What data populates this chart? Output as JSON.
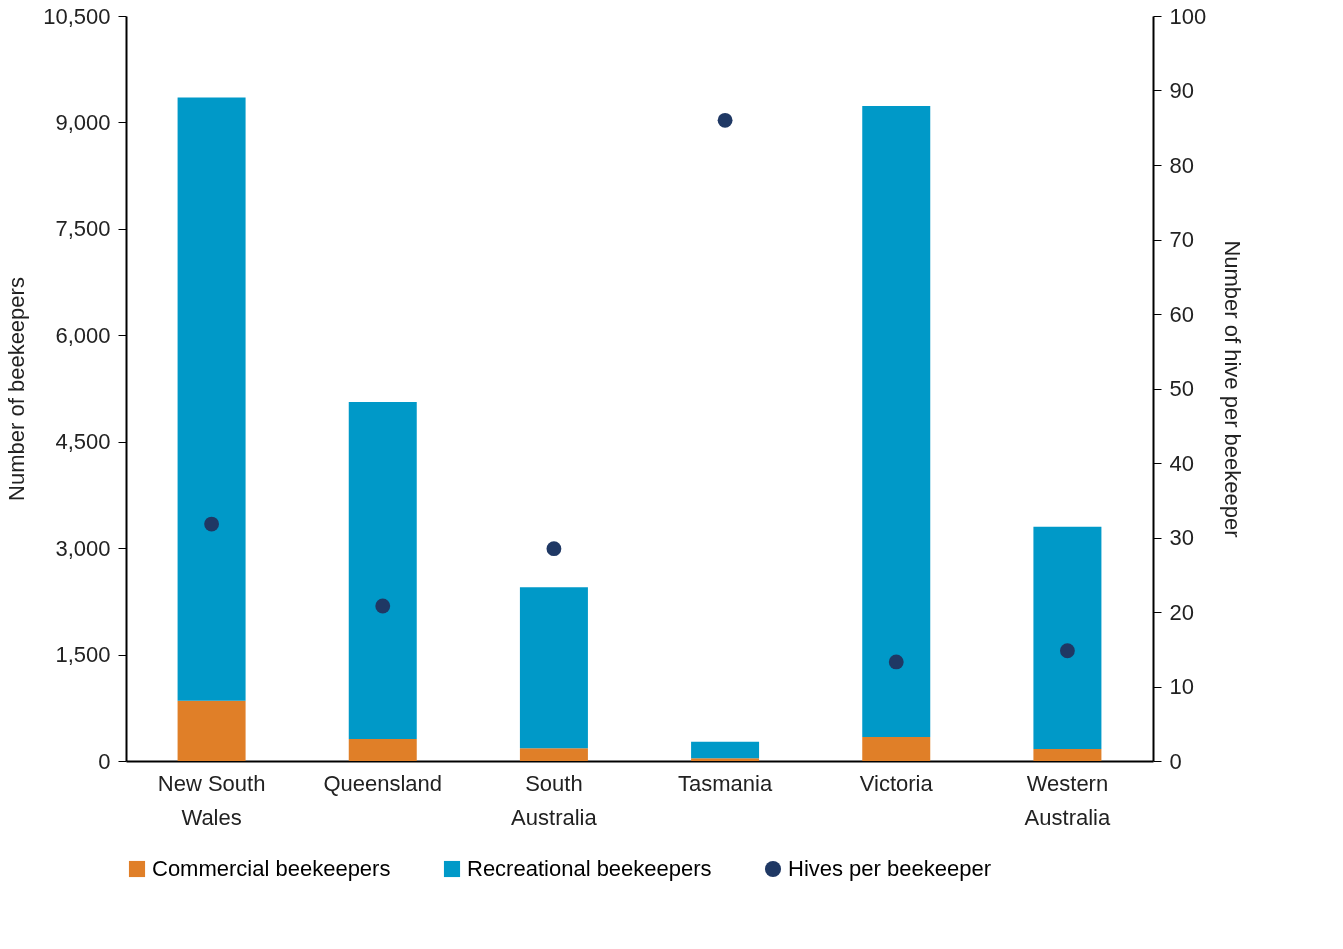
{
  "chart_data": {
    "type": "bar",
    "stacked": true,
    "ylabel": "Number of beekeepers",
    "y2label": "Number of hive per beekeeper",
    "categories": [
      "New South Wales",
      "Queensland",
      "South Australia",
      "Tasmania",
      "Victoria",
      "Western Australia"
    ],
    "series": [
      {
        "name": "Commercial beekeepers",
        "color": "#e07f28",
        "values": [
          850,
          310,
          180,
          40,
          340,
          170
        ]
      },
      {
        "name": "Recreational beekeepers",
        "color": "#0099c8",
        "values": [
          8500,
          4750,
          2270,
          230,
          8890,
          3130
        ]
      },
      {
        "name": "Hives per beekeeper",
        "color": "#1f3864",
        "type": "scatter",
        "axis": "y2",
        "marker": "circle",
        "values": [
          31.8,
          20.8,
          28.5,
          86.0,
          13.3,
          14.8
        ]
      }
    ],
    "ylim": [
      0,
      10500
    ],
    "yticks": [
      0,
      {
        "value": 1500,
        "label": "1,500"
      },
      {
        "value": 3000,
        "label": "3,000"
      },
      {
        "value": 4500,
        "label": "4,500"
      },
      {
        "value": 6000,
        "label": "6,000"
      },
      {
        "value": 7500,
        "label": "7,500"
      },
      {
        "value": 9000,
        "label": "9,000"
      },
      {
        "value": 10500,
        "label": "10,500"
      }
    ],
    "y2lim": [
      0,
      100
    ],
    "y2ticks": [
      0,
      10,
      20,
      30,
      40,
      50,
      60,
      70,
      80,
      90,
      100
    ],
    "grid": false,
    "legend": "bottom"
  }
}
